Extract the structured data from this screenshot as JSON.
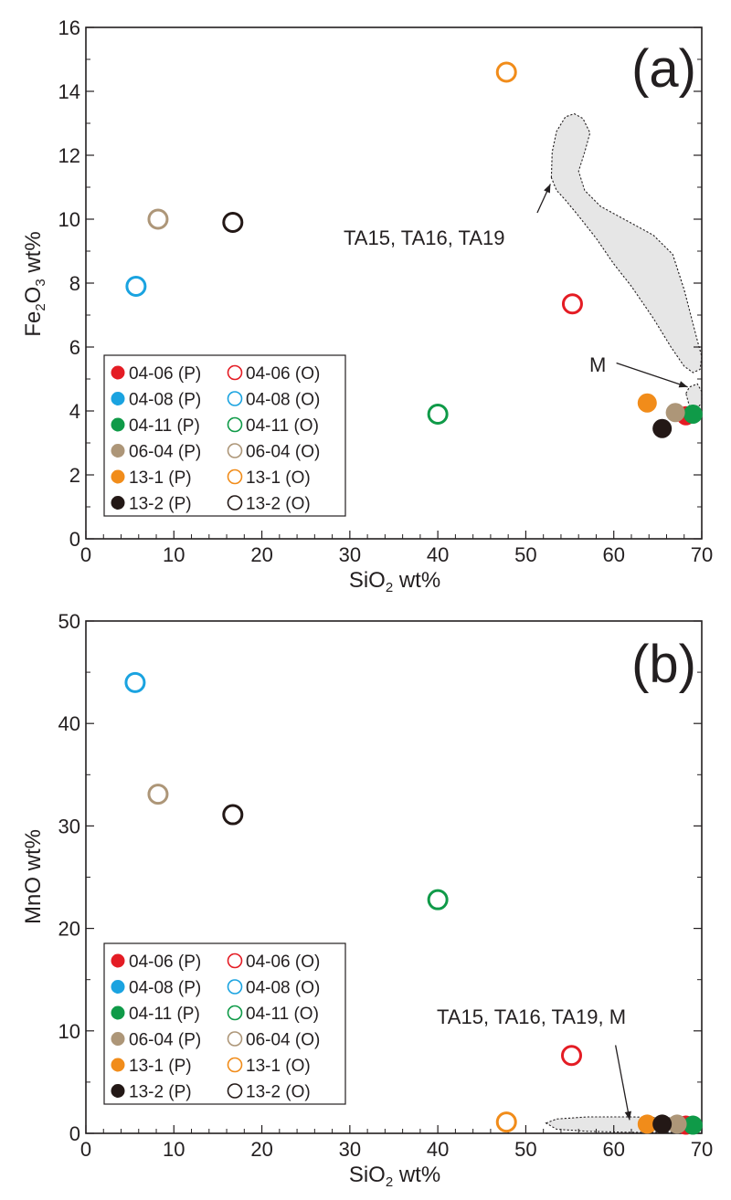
{
  "chart_data": [
    {
      "type": "scatter",
      "panel_label": "(a)",
      "xlabel_main": "SiO",
      "xlabel_sub": "2",
      "xlabel_tail": " wt%",
      "ylabel_main": "Fe",
      "ylabel_sub1": "2",
      "ylabel_mid": "O",
      "ylabel_sub2": "3",
      "ylabel_tail": " wt%",
      "xlim": [
        0,
        70
      ],
      "ylim": [
        0,
        16
      ],
      "xticks": [
        0,
        10,
        20,
        30,
        40,
        50,
        60,
        70
      ],
      "yticks": [
        0,
        2,
        4,
        6,
        8,
        10,
        12,
        14,
        16
      ],
      "series": [
        {
          "name": "04-06 (P)",
          "color": "#e41c24",
          "filled": true,
          "x": [
            68.2
          ],
          "y": [
            3.85
          ]
        },
        {
          "name": "04-06 (O)",
          "color": "#e41c24",
          "filled": false,
          "x": [
            55.3
          ],
          "y": [
            7.35
          ]
        },
        {
          "name": "04-08 (P)",
          "color": "#1aa3e0",
          "filled": true,
          "x": [],
          "y": []
        },
        {
          "name": "04-08 (O)",
          "color": "#1aa3e0",
          "filled": false,
          "x": [
            5.7
          ],
          "y": [
            7.9
          ]
        },
        {
          "name": "04-11 (P)",
          "color": "#0f9a48",
          "filled": true,
          "x": [
            69.0
          ],
          "y": [
            3.9
          ]
        },
        {
          "name": "04-11 (O)",
          "color": "#0f9a48",
          "filled": false,
          "x": [
            40.0
          ],
          "y": [
            3.9
          ]
        },
        {
          "name": "06-04 (P)",
          "color": "#ad9678",
          "filled": true,
          "x": [
            67.0
          ],
          "y": [
            3.95
          ]
        },
        {
          "name": "06-04 (O)",
          "color": "#ad9678",
          "filled": false,
          "x": [
            8.2
          ],
          "y": [
            10.0
          ]
        },
        {
          "name": "13-1 (P)",
          "color": "#f18c1a",
          "filled": true,
          "x": [
            63.8
          ],
          "y": [
            4.25
          ]
        },
        {
          "name": "13-1 (O)",
          "color": "#f18c1a",
          "filled": false,
          "x": [
            47.8
          ],
          "y": [
            14.6
          ]
        },
        {
          "name": "13-2 (P)",
          "color": "#231816",
          "filled": true,
          "x": [
            65.5
          ],
          "y": [
            3.45
          ]
        },
        {
          "name": "13-2 (O)",
          "color": "#231816",
          "filled": false,
          "x": [
            16.7
          ],
          "y": [
            9.9
          ]
        }
      ],
      "regions": [
        {
          "label": "TA15, TA16, TA19",
          "x": [
            52.9,
            53.0,
            53.5,
            54.5,
            55.5,
            56.5,
            57.3,
            56.7,
            56.0,
            56.7,
            58.5,
            60.5,
            62.5,
            64.5,
            66.7,
            68.0,
            69.5,
            70.0,
            69.8,
            69.0,
            68.0,
            66.5,
            64.5,
            62.0,
            60.0,
            58.0,
            56.0,
            54.5,
            53.5,
            52.9
          ],
          "y": [
            11.3,
            12.1,
            12.75,
            13.2,
            13.3,
            13.15,
            12.7,
            12.1,
            11.5,
            10.9,
            10.4,
            10.1,
            9.8,
            9.5,
            8.9,
            7.8,
            6.2,
            5.7,
            5.3,
            5.2,
            5.4,
            6.0,
            6.9,
            7.9,
            8.6,
            9.4,
            10.1,
            10.6,
            10.9,
            11.3
          ]
        },
        {
          "label": "M",
          "x": [
            68.2,
            68.6,
            69.5,
            70.0,
            70.0,
            69.5,
            68.6,
            68.2
          ],
          "y": [
            4.55,
            4.75,
            4.85,
            4.6,
            4.25,
            4.1,
            4.15,
            4.55
          ]
        }
      ],
      "annotations": [
        {
          "text": "TA15, TA16, TA19",
          "text_x": 38.5,
          "text_y": 9.9,
          "arrow_from": [
            51.3,
            10.2
          ],
          "arrow_to": [
            52.8,
            11.1
          ]
        },
        {
          "text": "M",
          "text_x": 57.7,
          "text_y": 5.5,
          "arrow_from": [
            60.3,
            5.5
          ],
          "arrow_to": [
            68.4,
            4.75
          ]
        }
      ]
    },
    {
      "type": "scatter",
      "panel_label": "(b)",
      "xlabel_main": "SiO",
      "xlabel_sub": "2",
      "xlabel_tail": " wt%",
      "ylabel_main": "MnO wt%",
      "xlim": [
        0,
        70
      ],
      "ylim": [
        0,
        50
      ],
      "xticks": [
        0,
        10,
        20,
        30,
        40,
        50,
        60,
        70
      ],
      "yticks": [
        0,
        10,
        20,
        30,
        40,
        50
      ],
      "series": [
        {
          "name": "04-06 (P)",
          "color": "#e41c24",
          "filled": true,
          "x": [
            68.2
          ],
          "y": [
            0.8
          ]
        },
        {
          "name": "04-06 (O)",
          "color": "#e41c24",
          "filled": false,
          "x": [
            55.2
          ],
          "y": [
            7.6
          ]
        },
        {
          "name": "04-08 (P)",
          "color": "#1aa3e0",
          "filled": true,
          "x": [],
          "y": []
        },
        {
          "name": "04-08 (O)",
          "color": "#1aa3e0",
          "filled": false,
          "x": [
            5.6
          ],
          "y": [
            44.0
          ]
        },
        {
          "name": "04-11 (P)",
          "color": "#0f9a48",
          "filled": true,
          "x": [
            69.0
          ],
          "y": [
            0.8
          ]
        },
        {
          "name": "04-11 (O)",
          "color": "#0f9a48",
          "filled": false,
          "x": [
            40.0
          ],
          "y": [
            22.8
          ]
        },
        {
          "name": "06-04 (P)",
          "color": "#ad9678",
          "filled": true,
          "x": [
            67.2
          ],
          "y": [
            0.9
          ]
        },
        {
          "name": "06-04 (O)",
          "color": "#ad9678",
          "filled": false,
          "x": [
            8.2
          ],
          "y": [
            33.1
          ]
        },
        {
          "name": "13-1 (P)",
          "color": "#f18c1a",
          "filled": true,
          "x": [
            63.8
          ],
          "y": [
            0.9
          ]
        },
        {
          "name": "13-1 (O)",
          "color": "#f18c1a",
          "filled": false,
          "x": [
            47.8
          ],
          "y": [
            1.1
          ]
        },
        {
          "name": "13-2 (P)",
          "color": "#231816",
          "filled": true,
          "x": [
            65.5
          ],
          "y": [
            0.9
          ]
        },
        {
          "name": "13-2 (O)",
          "color": "#231816",
          "filled": false,
          "x": [
            16.7
          ],
          "y": [
            31.1
          ]
        }
      ],
      "regions": [
        {
          "label": "TA15, TA16, TA19, M",
          "x": [
            52.3,
            53.5,
            57.0,
            62.0,
            67.0,
            70.0,
            70.0,
            67.0,
            62.0,
            57.0,
            53.5,
            52.3
          ],
          "y": [
            1.0,
            1.4,
            1.6,
            1.6,
            1.5,
            1.2,
            0.25,
            0.1,
            0.1,
            0.2,
            0.4,
            1.0
          ]
        }
      ],
      "annotations": [
        {
          "text": "TA15, TA16, TA19, M",
          "text_x": 39.5,
          "text_y": 10.4,
          "arrow_from": [
            60.2,
            8.6
          ],
          "arrow_to": [
            61.8,
            1.3
          ]
        }
      ]
    }
  ],
  "legend": {
    "items": [
      "04-06 (P)",
      "04-06 (O)",
      "04-08 (P)",
      "04-08 (O)",
      "04-11 (P)",
      "04-11 (O)",
      "06-04 (P)",
      "06-04 (O)",
      "13-1 (P)",
      "13-1 (O)",
      "13-2 (P)",
      "13-2 (O)"
    ],
    "placement": "bottom-left"
  }
}
